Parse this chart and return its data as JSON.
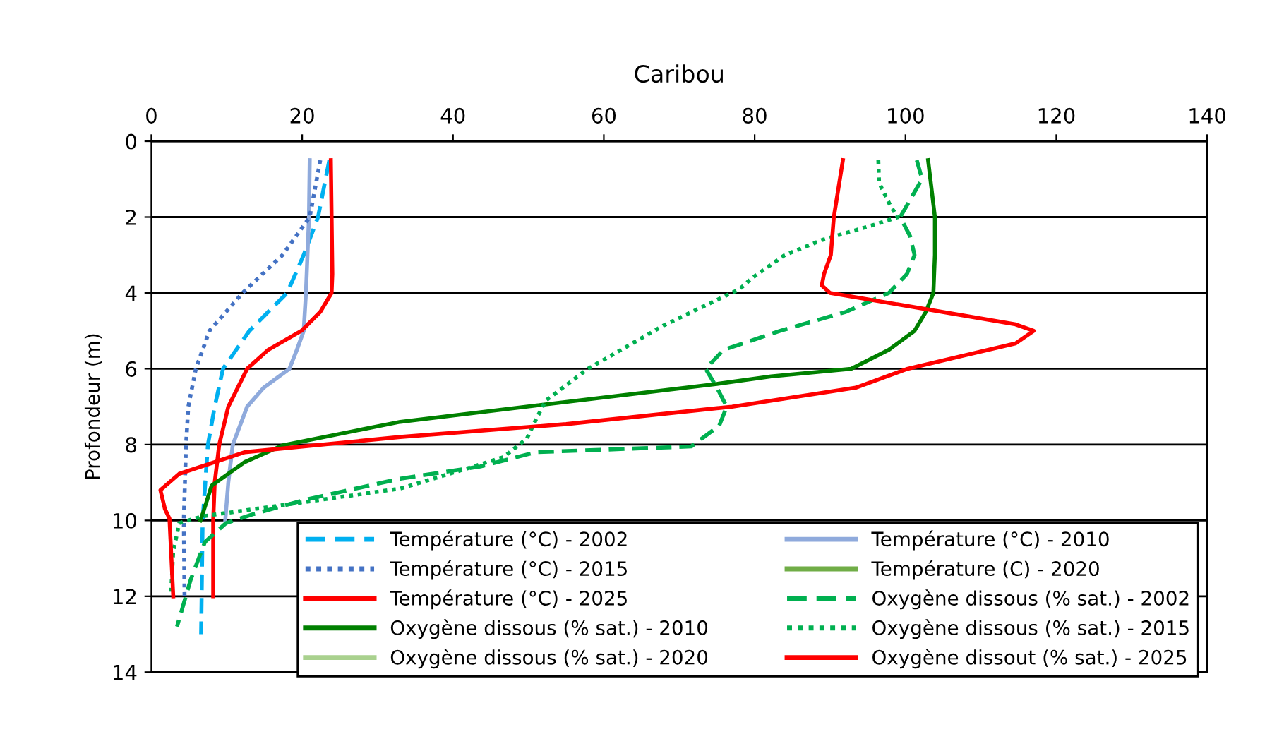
{
  "chart_data": {
    "type": "line",
    "title": "Caribou",
    "ylabel": "Profondeur (m)",
    "xlim": [
      0,
      140
    ],
    "xticks": [
      0,
      20,
      40,
      60,
      80,
      100,
      120,
      140
    ],
    "ylim": [
      14,
      0
    ],
    "yticks": [
      0,
      2,
      4,
      6,
      8,
      10,
      12,
      14
    ],
    "grid": "y",
    "legend": "bottom",
    "marker": "none",
    "series": [
      {
        "name": "Température (°C) - 2002",
        "color": "#00b0f0",
        "line_style": "dashed",
        "x": [
          23.6,
          22.1,
          20.2,
          18,
          13,
          9.5,
          8.4,
          7.5,
          6.8,
          6.6
        ],
        "values": [
          0.5,
          2,
          3,
          4,
          5,
          6,
          7,
          8,
          10,
          13
        ]
      },
      {
        "name": "Température (°C) - 2010",
        "color": "#8faadc",
        "line_style": "solid",
        "x": [
          21,
          20.9,
          20.5,
          20.2,
          19.3,
          18.3,
          14.9,
          12.7,
          10.8,
          10.2,
          9.8
        ],
        "values": [
          0.5,
          2,
          4,
          5,
          5.5,
          6,
          6.5,
          7,
          8,
          9,
          10
        ]
      },
      {
        "name": "Température (°C) - 2015",
        "color": "#4472c4",
        "line_style": "dotted",
        "x": [
          22.4,
          21,
          17.4,
          12.1,
          7.7,
          5.9,
          4.9,
          4.6,
          4.3,
          4.4
        ],
        "values": [
          0.5,
          2,
          3,
          4,
          5,
          6,
          7,
          8,
          10,
          12
        ]
      },
      {
        "name": "Température (C) - 2020",
        "color": "#70ad47",
        "line_style": "solid"
      },
      {
        "name": "Température (°C) - 2025",
        "color": "#ff0000",
        "line_style": "solid",
        "x": [
          23.8,
          24,
          23.9,
          22.4,
          19.9,
          15.5,
          12.7,
          10.2,
          9,
          8.4,
          8.2,
          8.2
        ],
        "values": [
          0.5,
          3.5,
          4,
          4.5,
          5,
          5.5,
          6,
          7,
          8,
          9,
          10,
          12
        ]
      },
      {
        "name": "Oxygène dissous (% sat.) - 2002",
        "color": "#00b050",
        "line_style": "dashed",
        "x": [
          101.5,
          102.2,
          99.3,
          100.6,
          101.2,
          100.2,
          97.8,
          92.1,
          83.4,
          75.9,
          73.5,
          75,
          76.3,
          75.3,
          71.6,
          51,
          43.6,
          33,
          20.5,
          13.6,
          9.9,
          7.1,
          5.2,
          3.4
        ],
        "values": [
          0.5,
          1,
          2,
          2.5,
          3,
          3.5,
          4,
          4.5,
          5,
          5.5,
          6,
          6.5,
          7,
          7.5,
          8.05,
          8.2,
          8.58,
          8.9,
          9.45,
          9.83,
          10.07,
          10.57,
          11.57,
          12.8
        ]
      },
      {
        "name": "Oxygène dissous (% sat.) - 2010",
        "color": "#008000",
        "line_style": "solid",
        "x": [
          103,
          103.9,
          103.9,
          103.7,
          102.7,
          101.2,
          97.8,
          92.8,
          82.2,
          75,
          33,
          17.4,
          12.4,
          8,
          6.8,
          6.5
        ],
        "values": [
          0.5,
          2,
          3,
          4,
          4.5,
          5,
          5.5,
          6,
          6.2,
          6.4,
          7.4,
          8.02,
          8.46,
          9.08,
          9.83,
          10
        ]
      },
      {
        "name": "Oxygène dissous (% sat.) - 2015",
        "color": "#00b050",
        "line_style": "dotted",
        "x": [
          96.4,
          96.5,
          98.1,
          99,
          95.9,
          89,
          84,
          79.7,
          78,
          68,
          57.9,
          52.3,
          51,
          49.8,
          46.7,
          41.7,
          33,
          18,
          6.8,
          3.7,
          2.9,
          2.6
        ],
        "values": [
          0.5,
          1.1,
          1.74,
          2,
          2.2,
          2.6,
          3,
          3.6,
          3.9,
          4.85,
          6,
          6.84,
          7.34,
          7.84,
          8.33,
          8.64,
          9.16,
          9.58,
          9.89,
          10.07,
          10.82,
          11.94
        ]
      },
      {
        "name": "Oxygène dissous (% sat.) - 2020",
        "color": "#a9d18e",
        "line_style": "solid"
      },
      {
        "name": "Oxygène dissout (% sat.) - 2025",
        "color": "#ff0000",
        "line_style": "solid",
        "x": [
          91.7,
          90.5,
          90.1,
          89.2,
          88.9,
          90,
          114.6,
          117,
          114.6,
          100.3,
          93.4,
          77,
          55,
          33,
          12.4,
          3.7,
          1.2,
          1.8,
          2.4,
          2.9
        ],
        "values": [
          0.5,
          2,
          3,
          3.5,
          3.8,
          4,
          4.83,
          5,
          5.33,
          6,
          6.5,
          7,
          7.46,
          7.8,
          8.2,
          8.77,
          9.2,
          9.7,
          9.95,
          12
        ]
      }
    ]
  }
}
